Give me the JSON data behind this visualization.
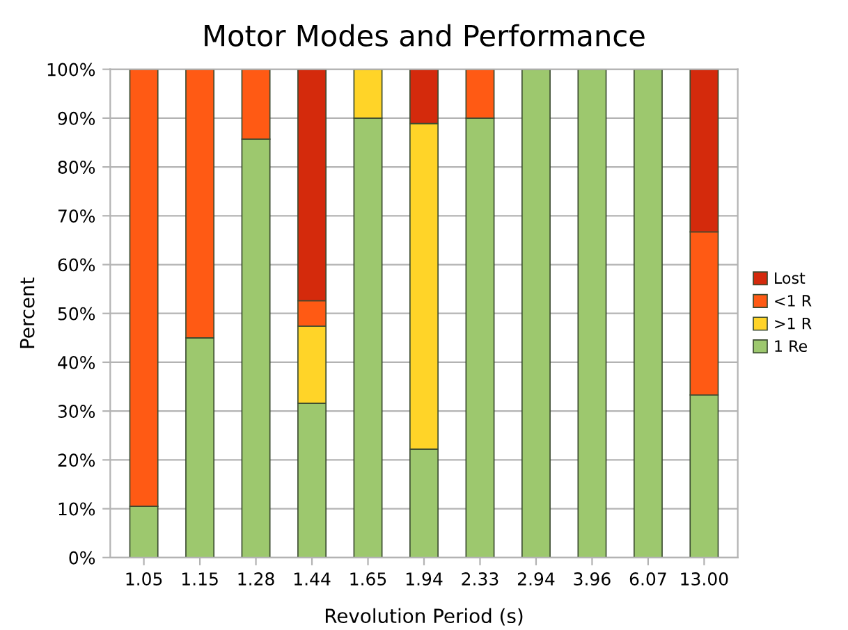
{
  "chart_data": {
    "type": "bar",
    "title": "Motor Modes and Performance",
    "xlabel": "Revolution Period (s)",
    "ylabel": "Percent",
    "categories": [
      "1.05",
      "1.15",
      "1.28",
      "1.44",
      "1.65",
      "1.94",
      "2.33",
      "2.94",
      "3.96",
      "6.07",
      "13.00"
    ],
    "stacked": true,
    "series": [
      {
        "name": "1 Re",
        "color": "#9dc86e",
        "values": [
          10.5,
          45,
          85.7,
          31.6,
          90,
          22.2,
          90,
          100,
          100,
          100,
          33.3
        ]
      },
      {
        "name": ">1 R",
        "color": "#ffd428",
        "values": [
          null,
          null,
          null,
          15.8,
          10,
          66.7,
          null,
          null,
          null,
          null,
          null
        ]
      },
      {
        "name": "<1 R",
        "color": "#ff5a14",
        "values": [
          89.5,
          55,
          14.3,
          5.2,
          null,
          null,
          10,
          null,
          null,
          null,
          33.4
        ]
      },
      {
        "name": "Lost",
        "color": "#d42a0c",
        "values": [
          null,
          null,
          null,
          47.4,
          null,
          11.1,
          null,
          null,
          null,
          null,
          33.3
        ]
      }
    ],
    "ylim": [
      0,
      100
    ],
    "yticks": [
      {
        "value": 0,
        "label": "0%"
      },
      {
        "value": 10,
        "label": "10%"
      },
      {
        "value": 20,
        "label": "20%"
      },
      {
        "value": 30,
        "label": "30%"
      },
      {
        "value": 40,
        "label": "40%"
      },
      {
        "value": 50,
        "label": "50%"
      },
      {
        "value": 60,
        "label": "60%"
      },
      {
        "value": 70,
        "label": "70%"
      },
      {
        "value": 80,
        "label": "80%"
      },
      {
        "value": 90,
        "label": "90%"
      },
      {
        "value": 100,
        "label": "100%"
      }
    ],
    "grid": "y",
    "legend": "right"
  }
}
